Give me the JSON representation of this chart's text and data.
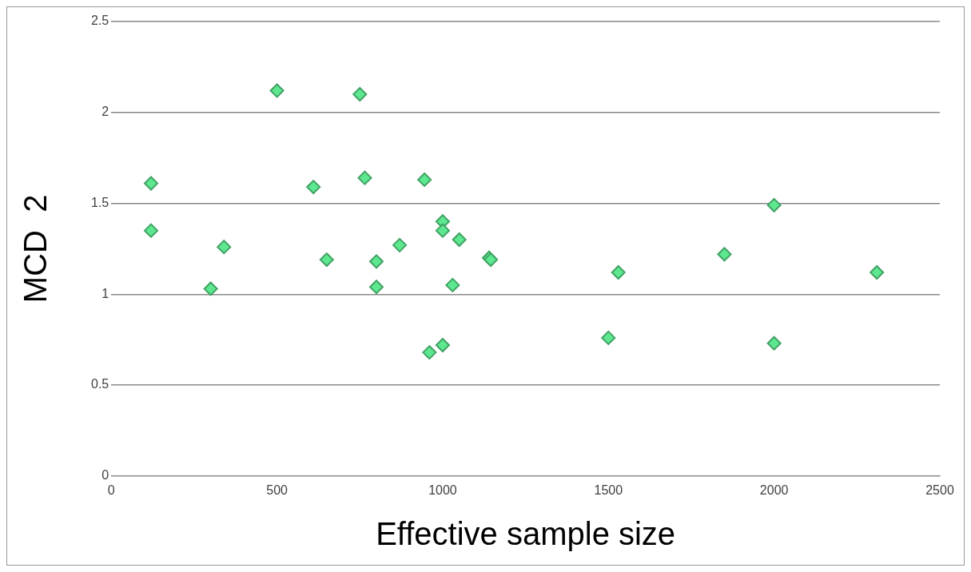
{
  "chart_data": {
    "type": "scatter",
    "xlabel": "Effective sample size",
    "ylabel": "MCD  2",
    "x": [
      120,
      120,
      300,
      340,
      500,
      610,
      650,
      750,
      765,
      800,
      800,
      870,
      945,
      960,
      1000,
      1000,
      1000,
      1030,
      1050,
      1140,
      1145,
      1500,
      1530,
      1850,
      2000,
      2000,
      2310
    ],
    "series": [
      {
        "color": "#5de88f",
        "values": [
          1.61,
          1.35,
          1.03,
          1.26,
          2.12,
          1.59,
          1.19,
          2.1,
          1.64,
          1.18,
          1.04,
          1.27,
          1.63,
          0.68,
          1.4,
          1.35,
          0.72,
          1.05,
          1.3,
          1.2,
          1.19,
          0.76,
          1.12,
          1.22,
          1.49,
          0.73,
          1.12
        ]
      }
    ],
    "xlim": [
      0,
      2500
    ],
    "xticks": [
      0,
      500,
      1000,
      1500,
      2000,
      2500
    ],
    "ylim": [
      0,
      2.5
    ],
    "yticks": [
      0,
      0.5,
      1,
      1.5,
      2,
      2.5
    ],
    "grid": "y",
    "marker": "diamond",
    "legend": false
  }
}
